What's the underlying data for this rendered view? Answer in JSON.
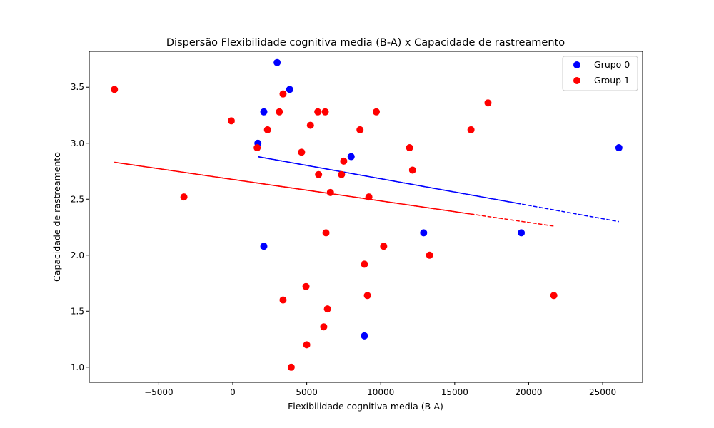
{
  "chart_data": {
    "type": "scatter",
    "title": "Dispersão Flexibilidade cognitiva media (B-A) x Capacidade de rastreamento",
    "xlabel": "Flexibilidade cognitiva media (B-A)",
    "ylabel": "Capacidade de rastreamento",
    "xlim": [
      -9700,
      27700
    ],
    "ylim": [
      0.865,
      3.82
    ],
    "xticks": [
      -5000,
      0,
      5000,
      10000,
      15000,
      20000,
      25000
    ],
    "xtick_labels": [
      "−5000",
      "0",
      "5000",
      "10000",
      "15000",
      "20000",
      "25000"
    ],
    "yticks": [
      1.0,
      1.5,
      2.0,
      2.5,
      3.0,
      3.5
    ],
    "ytick_labels": [
      "1.0",
      "1.5",
      "2.0",
      "2.5",
      "3.0",
      "3.5"
    ],
    "grid": false,
    "legend_position": "top-right",
    "series": [
      {
        "name": "Grupo 0",
        "color": "#0000ff",
        "points": [
          [
            3000,
            3.72
          ],
          [
            3850,
            3.48
          ],
          [
            2100,
            3.28
          ],
          [
            1700,
            3.0
          ],
          [
            8000,
            2.88
          ],
          [
            26100,
            2.96
          ],
          [
            2100,
            2.08
          ],
          [
            12900,
            2.2
          ],
          [
            19500,
            2.2
          ],
          [
            8900,
            1.28
          ]
        ],
        "trend": {
          "x_start": 1700,
          "y_start": 2.88,
          "x_solid_end": 19500,
          "x_end": 26100,
          "y_end": 2.3
        }
      },
      {
        "name": "Group 1",
        "color": "#ff0000",
        "points": [
          [
            -8000,
            3.48
          ],
          [
            -3300,
            2.52
          ],
          [
            -100,
            3.2
          ],
          [
            1650,
            2.96
          ],
          [
            2350,
            3.12
          ],
          [
            3150,
            3.28
          ],
          [
            3400,
            3.44
          ],
          [
            3400,
            1.6
          ],
          [
            3950,
            1.0
          ],
          [
            4650,
            2.92
          ],
          [
            4950,
            1.72
          ],
          [
            5000,
            1.2
          ],
          [
            5250,
            3.16
          ],
          [
            5750,
            3.28
          ],
          [
            5800,
            2.72
          ],
          [
            6150,
            1.36
          ],
          [
            6250,
            3.28
          ],
          [
            6300,
            2.2
          ],
          [
            6400,
            1.52
          ],
          [
            6600,
            2.56
          ],
          [
            7350,
            2.72
          ],
          [
            7500,
            2.84
          ],
          [
            8600,
            3.12
          ],
          [
            8900,
            1.92
          ],
          [
            9100,
            1.64
          ],
          [
            9200,
            2.52
          ],
          [
            9700,
            3.28
          ],
          [
            10200,
            2.08
          ],
          [
            11950,
            2.96
          ],
          [
            12150,
            2.76
          ],
          [
            13300,
            2.0
          ],
          [
            16100,
            3.12
          ],
          [
            17250,
            3.36
          ],
          [
            21700,
            1.64
          ]
        ],
        "trend": {
          "x_start": -8000,
          "y_start": 2.83,
          "x_solid_end": 16300,
          "x_end": 21700,
          "y_end": 2.26
        }
      }
    ]
  }
}
